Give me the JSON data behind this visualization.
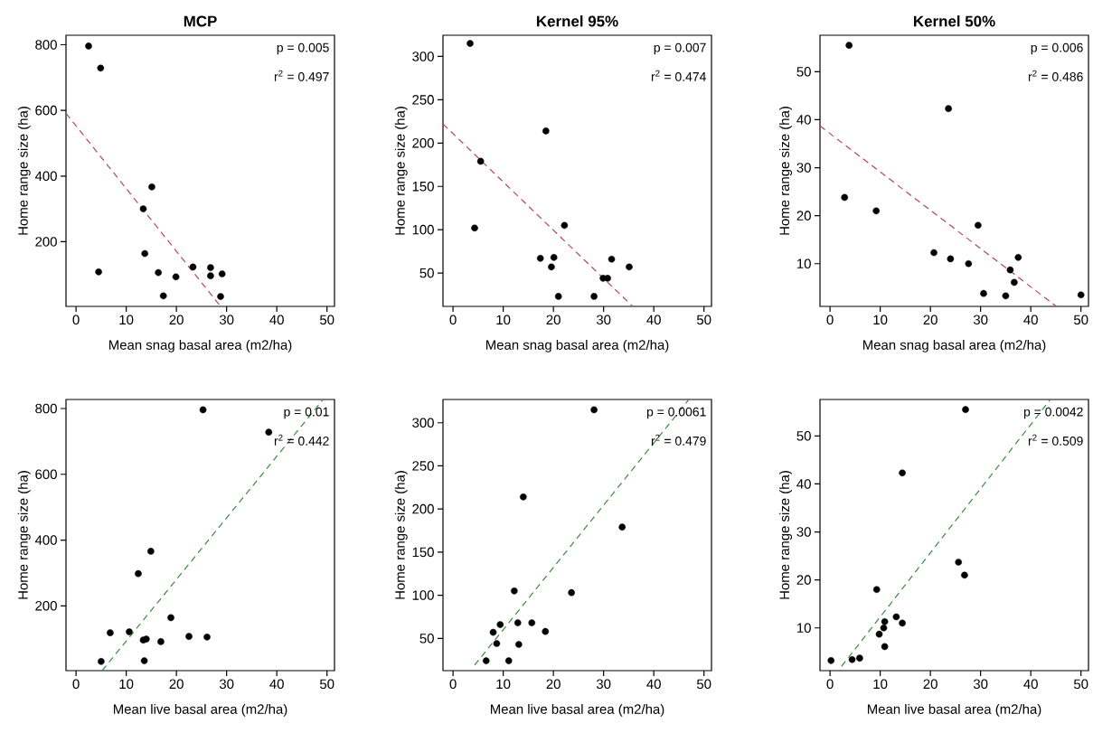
{
  "chart_data": [
    {
      "type": "scatter",
      "title": "MCP",
      "xlabel": "Mean snag basal area (m2/ha)",
      "ylabel": "Home range size (ha)",
      "annotations": [
        "p = 0.005",
        "r$^{2}$ = 0.497"
      ],
      "xlim": [
        -2,
        51.5
      ],
      "ylim": [
        3,
        829
      ],
      "xticks": [
        0,
        10,
        20,
        30,
        40,
        50
      ],
      "yticks": [
        200,
        400,
        600,
        800
      ],
      "series": [
        {
          "type": "scatter",
          "color": "#000000",
          "marker": "circle",
          "x": [
            2.5,
            4.9,
            4.5,
            13.4,
            15.1,
            13.7,
            16.4,
            17.4,
            19.9,
            23.3,
            26.8,
            26.8,
            29.1,
            28.8
          ],
          "values": [
            796,
            729,
            108,
            300,
            367,
            164,
            106,
            35,
            93,
            123,
            121,
            96,
            102,
            33
          ]
        },
        {
          "type": "line",
          "color": "#b5474b",
          "marker": "none",
          "line_style": "dashed",
          "x": [
            -2,
            28.8
          ],
          "values": [
            591,
            3
          ]
        }
      ]
    },
    {
      "type": "scatter",
      "title": "Kernel 95%",
      "xlabel": "Mean snag basal area (m2/ha)",
      "ylabel": "Home range size (ha)",
      "annotations": [
        "p = 0.007",
        "r$^{2}$ = 0.474"
      ],
      "xlim": [
        -2,
        51.5
      ],
      "ylim": [
        11.5,
        324.5
      ],
      "xticks": [
        0,
        10,
        20,
        30,
        40,
        50
      ],
      "yticks": [
        50,
        100,
        150,
        200,
        250,
        300
      ],
      "series": [
        {
          "type": "scatter",
          "color": "#000000",
          "marker": "circle",
          "x": [
            3.4,
            4.3,
            5.5,
            18.5,
            17.4,
            20.1,
            19.6,
            21.0,
            22.2,
            28.1,
            29.9,
            30.8,
            31.6,
            35.1
          ],
          "values": [
            315,
            102,
            179,
            214,
            67,
            68,
            57,
            23,
            105,
            23,
            44,
            44,
            66,
            57
          ]
        },
        {
          "type": "line",
          "color": "#b5474b",
          "marker": "none",
          "line_style": "dashed",
          "x": [
            -2,
            35.7
          ],
          "values": [
            222,
            12
          ]
        }
      ]
    },
    {
      "type": "scatter",
      "title": "Kernel 50%",
      "xlabel": "Mean snag basal area (m2/ha)",
      "ylabel": "Home range size (ha)",
      "annotations": [
        "p = 0.006",
        "r$^{2}$ = 0.486"
      ],
      "xlim": [
        -2,
        51.5
      ],
      "ylim": [
        1.1,
        57.6
      ],
      "xticks": [
        0,
        10,
        20,
        30,
        40,
        50
      ],
      "yticks": [
        10,
        20,
        30,
        40,
        50
      ],
      "series": [
        {
          "type": "scatter",
          "color": "#000000",
          "marker": "circle",
          "x": [
            3.8,
            2.9,
            9.2,
            23.6,
            20.7,
            24.0,
            27.6,
            29.5,
            30.6,
            35.0,
            35.9,
            36.7,
            37.5,
            50.0
          ],
          "values": [
            55.5,
            23.8,
            21.0,
            42.3,
            12.3,
            11.0,
            10.0,
            18.0,
            3.8,
            3.3,
            8.7,
            6.1,
            11.3,
            3.5
          ]
        },
        {
          "type": "line",
          "color": "#b5474b",
          "marker": "none",
          "line_style": "dashed",
          "x": [
            -2,
            45.1
          ],
          "values": [
            38.7,
            1.1
          ]
        }
      ]
    },
    {
      "type": "scatter",
      "xlabel": "Mean live basal area (m2/ha)",
      "ylabel": "Home range size (ha)",
      "annotations": [
        "p = 0.01",
        "r$^{2}$ = 0.442"
      ],
      "xlim": [
        -2,
        51.5
      ],
      "ylim": [
        3,
        827.5
      ],
      "xticks": [
        0,
        10,
        20,
        30,
        40,
        50
      ],
      "yticks": [
        200,
        400,
        600,
        800
      ],
      "series": [
        {
          "type": "scatter",
          "color": "#000000",
          "marker": "circle",
          "x": [
            5.0,
            6.8,
            10.6,
            12.4,
            14.9,
            13.4,
            14.0,
            13.6,
            16.9,
            18.9,
            22.5,
            26.1,
            25.3,
            38.4
          ],
          "values": [
            31,
            118,
            121,
            298,
            366,
            96,
            99,
            33,
            91,
            164,
            107,
            105,
            796,
            728
          ]
        },
        {
          "type": "line",
          "color": "#3a8a3a",
          "marker": "none",
          "line_style": "dashed",
          "x": [
            5.2,
            49.2
          ],
          "values": [
            3,
            827
          ]
        }
      ]
    },
    {
      "type": "scatter",
      "xlabel": "Mean live basal area (m2/ha)",
      "ylabel": "Home range size (ha)",
      "annotations": [
        "p = 0.0061",
        "r$^{2}$ = 0.479"
      ],
      "xlim": [
        -2,
        51.5
      ],
      "ylim": [
        12.6,
        327
      ],
      "xticks": [
        0,
        10,
        20,
        30,
        40,
        50
      ],
      "yticks": [
        50,
        100,
        150,
        200,
        250,
        300
      ],
      "series": [
        {
          "type": "scatter",
          "color": "#000000",
          "marker": "circle",
          "x": [
            28.1,
            33.7,
            14.0,
            12.2,
            23.6,
            9.4,
            8.0,
            12.9,
            15.7,
            18.4,
            8.7,
            13.1,
            6.6,
            11.1
          ],
          "values": [
            315,
            179,
            214,
            105,
            103,
            66,
            57,
            68,
            68,
            58,
            44,
            43,
            24,
            24
          ]
        },
        {
          "type": "line",
          "color": "#3a8a3a",
          "marker": "none",
          "line_style": "dashed",
          "x": [
            4.3,
            47.0
          ],
          "values": [
            19,
            327
          ]
        }
      ]
    },
    {
      "type": "scatter",
      "xlabel": "Mean live basal area (m2/ha)",
      "ylabel": "Home range size (ha)",
      "annotations": [
        "p = 0.0042",
        "r$^{2}$ = 0.509"
      ],
      "xlim": [
        -2,
        51.5
      ],
      "ylim": [
        1.1,
        57.6
      ],
      "xticks": [
        0,
        10,
        20,
        30,
        40,
        50
      ],
      "yticks": [
        10,
        20,
        30,
        40,
        50
      ],
      "series": [
        {
          "type": "scatter",
          "color": "#000000",
          "marker": "circle",
          "x": [
            0.2,
            4.4,
            5.9,
            9.3,
            9.8,
            10.7,
            10.9,
            10.9,
            13.2,
            14.4,
            14.4,
            25.6,
            26.8,
            27.0
          ],
          "values": [
            3.2,
            3.4,
            3.7,
            18.0,
            8.7,
            10.0,
            11.3,
            6.1,
            12.3,
            11.0,
            42.3,
            23.7,
            21.0,
            55.5
          ]
        },
        {
          "type": "line",
          "color": "#3a8a3a",
          "marker": "none",
          "line_style": "dashed",
          "x": [
            2.3,
            43.9
          ],
          "values": [
            2.0,
            57.6
          ]
        }
      ]
    }
  ]
}
